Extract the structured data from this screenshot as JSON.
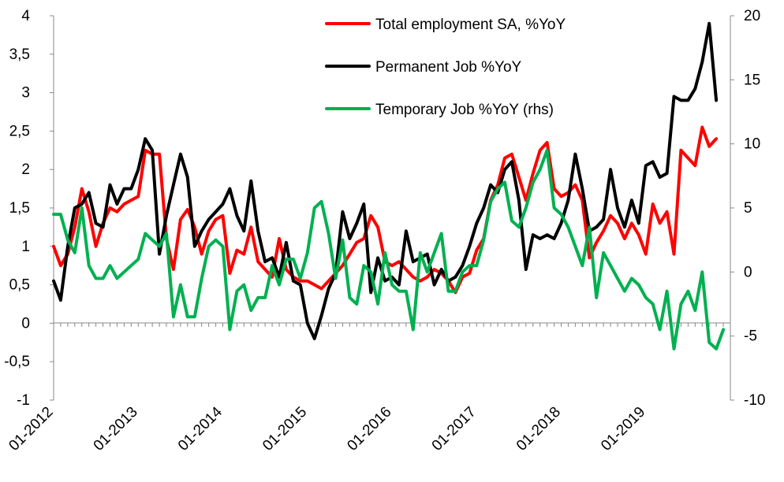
{
  "chart_data": {
    "type": "line",
    "title": "",
    "xlabel": "",
    "ylabel": "",
    "x_tick_labels": [
      "01-2012",
      "01-2013",
      "01-2014",
      "01-2015",
      "01-2016",
      "01-2017",
      "01-2018",
      "01-2019"
    ],
    "x_start": "2012-01",
    "y_left": {
      "ylim": [
        -1,
        4
      ],
      "tick_labels": [
        "-1",
        "-0,5",
        "0",
        "0,5",
        "1",
        "1,5",
        "2",
        "2,5",
        "3",
        "3,5",
        "4"
      ]
    },
    "y_right": {
      "ylim": [
        -10,
        20
      ],
      "tick_labels": [
        "-10",
        "-5",
        "0",
        "5",
        "10",
        "15",
        "20"
      ]
    },
    "grid": false,
    "legend_position": "top-right",
    "series": [
      {
        "name": "Total employment SA, %YoY",
        "axis": "left",
        "color": "#ff0000",
        "values": [
          1.0,
          0.75,
          0.9,
          1.25,
          1.75,
          1.45,
          1.0,
          1.3,
          1.5,
          1.45,
          1.55,
          1.6,
          1.65,
          2.25,
          2.2,
          2.2,
          1.1,
          0.7,
          1.35,
          1.48,
          1.25,
          0.9,
          1.2,
          1.35,
          1.4,
          0.65,
          0.95,
          0.9,
          1.25,
          0.8,
          0.7,
          0.6,
          1.1,
          0.7,
          0.6,
          0.55,
          0.55,
          0.5,
          0.45,
          0.55,
          0.65,
          0.75,
          0.9,
          1.05,
          1.1,
          1.4,
          1.25,
          0.8,
          0.75,
          0.8,
          0.7,
          0.6,
          0.55,
          0.6,
          0.7,
          0.65,
          0.55,
          0.4,
          0.6,
          0.65,
          0.95,
          1.1,
          1.6,
          1.8,
          2.15,
          2.2,
          1.9,
          1.6,
          1.95,
          2.25,
          2.35,
          1.75,
          1.65,
          1.7,
          1.8,
          1.6,
          0.85,
          1.05,
          1.2,
          1.4,
          1.3,
          1.1,
          1.3,
          1.15,
          0.9,
          1.55,
          1.3,
          1.45,
          0.9,
          2.25,
          2.15,
          2.05,
          2.55,
          2.3,
          2.4
        ]
      },
      {
        "name": "Permanent Job %YoY",
        "axis": "left",
        "color": "#000000",
        "values": [
          0.55,
          0.3,
          1.0,
          1.5,
          1.55,
          1.7,
          1.3,
          1.25,
          1.8,
          1.55,
          1.75,
          1.75,
          2.0,
          2.4,
          2.25,
          0.9,
          1.4,
          1.8,
          2.2,
          1.9,
          1.0,
          1.2,
          1.35,
          1.45,
          1.55,
          1.75,
          1.4,
          1.2,
          1.85,
          1.2,
          0.8,
          0.85,
          0.6,
          1.05,
          0.55,
          0.5,
          0.0,
          -0.2,
          0.1,
          0.45,
          0.65,
          1.45,
          1.1,
          1.3,
          1.55,
          0.4,
          0.85,
          0.55,
          0.6,
          0.5,
          1.2,
          0.8,
          0.85,
          0.9,
          0.5,
          0.7,
          0.55,
          0.6,
          0.75,
          1.0,
          1.3,
          1.5,
          1.8,
          1.7,
          2.0,
          2.1,
          1.6,
          0.7,
          1.15,
          1.1,
          1.15,
          1.1,
          1.3,
          1.6,
          2.2,
          1.75,
          1.2,
          1.25,
          1.35,
          2.0,
          1.5,
          1.25,
          1.6,
          1.3,
          2.05,
          2.1,
          1.9,
          1.95,
          2.95,
          2.9,
          2.9,
          3.05,
          3.4,
          3.9,
          2.9
        ]
      },
      {
        "name": "Temporary Job %YoY (rhs)",
        "axis": "right",
        "color": "#00b050",
        "values": [
          4.5,
          4.5,
          2.5,
          1.5,
          5.0,
          0.5,
          -0.5,
          -0.5,
          0.5,
          -0.5,
          0.0,
          0.5,
          1.0,
          3.0,
          2.5,
          2.0,
          3.0,
          -3.5,
          -1.0,
          -3.5,
          -3.5,
          -0.5,
          2.0,
          2.5,
          2.0,
          -4.5,
          -1.5,
          -1.0,
          -3.0,
          -2.0,
          -2.0,
          0.5,
          -1.0,
          1.0,
          1.0,
          -0.5,
          1.5,
          5.0,
          5.5,
          3.0,
          -0.5,
          2.5,
          -2.0,
          -2.5,
          0.5,
          0.0,
          -2.5,
          1.5,
          -1.0,
          -1.5,
          -1.5,
          -4.5,
          1.5,
          0.0,
          1.5,
          3.0,
          -1.5,
          -1.5,
          0.0,
          0.5,
          0.5,
          2.5,
          5.5,
          6.5,
          7.0,
          4.0,
          3.5,
          5.0,
          7.0,
          8.0,
          9.5,
          5.0,
          4.5,
          3.5,
          2.0,
          0.5,
          3.5,
          -2.0,
          1.5,
          0.5,
          -0.5,
          -1.5,
          -0.5,
          -1.0,
          -2.0,
          -2.5,
          -4.5,
          -1.5,
          -6.0,
          -2.5,
          -1.5,
          -3.0,
          0.0,
          -5.5,
          -6.0,
          -4.5
        ]
      }
    ]
  }
}
